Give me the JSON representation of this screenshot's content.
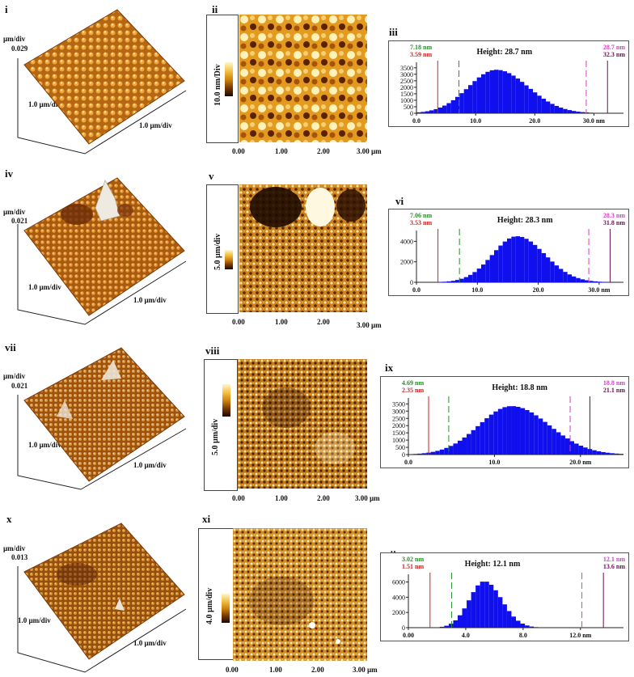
{
  "rows": [
    {
      "labels": {
        "surface": "i",
        "image": "ii",
        "hist": "iii"
      },
      "surface": {
        "z_unit": "µm/div",
        "z_value": "0.029",
        "x_label": "1.0 µm/div",
        "y_label": "1.0 µm/div"
      },
      "image": {
        "scale_label": "10.0 nm/Div",
        "x_ticks": [
          "0.00",
          "1.00",
          "2.00",
          "3.00 µm"
        ]
      },
      "hist": {
        "title": "Height: 28.7 nm",
        "left_outer": "7.18 nm",
        "left_inner": "3.59 nm",
        "right_outer": "28.7 nm",
        "right_inner": "32.3 nm",
        "y_ticks": [
          "0",
          "500",
          "1000",
          "1500",
          "2000",
          "2500",
          "3000",
          "3500"
        ],
        "x_ticks": [
          "0.0",
          "10.0",
          "20.0",
          "30.0 nm"
        ]
      }
    },
    {
      "labels": {
        "surface": "iv",
        "image": "v",
        "hist": "vi"
      },
      "surface": {
        "z_unit": "µm/div",
        "z_value": "0.021",
        "x_label": "1.0 µm/div",
        "y_label": "1.0 µm/div"
      },
      "image": {
        "scale_label": "5.0 µm/div",
        "x_ticks": [
          "0.00",
          "1.00",
          "2.00",
          "3.00 µm"
        ]
      },
      "hist": {
        "title": "Height: 28.3 nm",
        "left_outer": "7.06 nm",
        "left_inner": "3.53 nm",
        "right_outer": "28.3 nm",
        "right_inner": "31.8 nm",
        "y_ticks": [
          "0",
          "2000",
          "4000"
        ],
        "x_ticks": [
          "0.0",
          "10.0",
          "20.0",
          "30.0 nm"
        ]
      }
    },
    {
      "labels": {
        "surface": "vii",
        "image": "viii",
        "hist": "ix"
      },
      "surface": {
        "z_unit": "µm/div",
        "z_value": "0.021",
        "x_label": "1.0 µm/div",
        "y_label": "1.0 µm/div"
      },
      "image": {
        "scale_label": "5.0 µm/div",
        "x_ticks": [
          "0.00",
          "1.00",
          "2.00",
          "3.00 µm"
        ]
      },
      "hist": {
        "title": "Height: 18.8 nm",
        "left_outer": "4.69 nm",
        "left_inner": "2.35 nm",
        "right_outer": "18.8 nm",
        "right_inner": "21.1 nm",
        "y_ticks": [
          "0",
          "500",
          "1000",
          "1500",
          "2000",
          "2500",
          "3000",
          "3500"
        ],
        "x_ticks": [
          "0.0",
          "10.0",
          "20.0 nm"
        ]
      }
    },
    {
      "labels": {
        "surface": "x",
        "image": "xi",
        "hist": "xii"
      },
      "surface": {
        "z_unit": "µm/div",
        "z_value": "0.013",
        "x_label": "1.0 µm/div",
        "y_label": "1.0 µm/div"
      },
      "image": {
        "scale_label": "4.0 µm/div",
        "x_ticks": [
          "0.00",
          "1.00",
          "2.00",
          "3.00 µm"
        ]
      },
      "hist": {
        "title": "Height: 12.1 nm",
        "left_outer": "3.02 nm",
        "left_inner": "1.51 nm",
        "right_outer": "12.1 nm",
        "right_inner": "13.6 nm",
        "y_ticks": [
          "0",
          "2000",
          "4000",
          "6000"
        ],
        "x_ticks": [
          "0.00",
          "4.0",
          "8.0",
          "12.0 nm"
        ]
      }
    }
  ],
  "chart_data": [
    {
      "type": "bar",
      "peak_x": 13.5,
      "peak_y": 3350,
      "spread": 4.7,
      "xlim": [
        0,
        35
      ],
      "ylim": [
        0,
        3800
      ],
      "y_ticks": [
        0,
        500,
        1000,
        1500,
        2000,
        2500,
        3000,
        3500
      ],
      "x_ticks": [
        0,
        10,
        20,
        30
      ],
      "lines": {
        "left_inner": 3.59,
        "left_outer": 7.18,
        "right_outer": 28.7,
        "right_inner": 32.3
      },
      "colors": {
        "bars": "#1010ee",
        "left_outer": "#2c8a2c",
        "left_inner": "#cc2222",
        "right_outer": "#d040c0",
        "right_inner": "#6a1050"
      }
    },
    {
      "type": "bar",
      "peak_x": 16.5,
      "peak_y": 4500,
      "spread": 4.0,
      "xlim": [
        0,
        34
      ],
      "ylim": [
        0,
        4900
      ],
      "y_ticks": [
        0,
        2000,
        4000
      ],
      "x_ticks": [
        0,
        10,
        20,
        30
      ],
      "lines": {
        "left_inner": 3.53,
        "left_outer": 7.06,
        "right_outer": 28.3,
        "right_inner": 31.8
      },
      "colors": {
        "bars": "#1010ee",
        "left_outer": "#2c8a2c",
        "left_inner": "#cc2222",
        "right_outer": "#d040c0",
        "right_inner": "#6a1050"
      }
    },
    {
      "type": "bar",
      "peak_x": 12.0,
      "peak_y": 3350,
      "spread": 3.8,
      "xlim": [
        0,
        25
      ],
      "ylim": [
        0,
        3800
      ],
      "y_ticks": [
        0,
        500,
        1000,
        1500,
        2000,
        2500,
        3000,
        3500
      ],
      "x_ticks": [
        0,
        10,
        20
      ],
      "lines": {
        "left_inner": 2.35,
        "left_outer": 4.69,
        "right_outer": 18.8,
        "right_inner": 21.1
      },
      "colors": {
        "bars": "#1010ee",
        "left_outer": "#2c8a2c",
        "left_inner": "#cc2222",
        "right_outer": "#d040c0",
        "right_inner": "#6a1050"
      }
    },
    {
      "type": "bar",
      "peak_x": 5.3,
      "peak_y": 6100,
      "spread": 1.05,
      "xlim": [
        0,
        15
      ],
      "ylim": [
        0,
        6800
      ],
      "y_ticks": [
        0,
        2000,
        4000,
        6000
      ],
      "x_ticks": [
        0,
        4,
        8,
        12
      ],
      "lines": {
        "left_inner": 1.51,
        "left_outer": 3.02,
        "right_outer": 12.1,
        "right_inner": 13.6
      },
      "colors": {
        "bars": "#1010ee",
        "left_outer": "#2c8a2c",
        "left_inner": "#cc2222",
        "right_outer": "#d040c0",
        "right_inner": "#6a1050"
      }
    }
  ]
}
